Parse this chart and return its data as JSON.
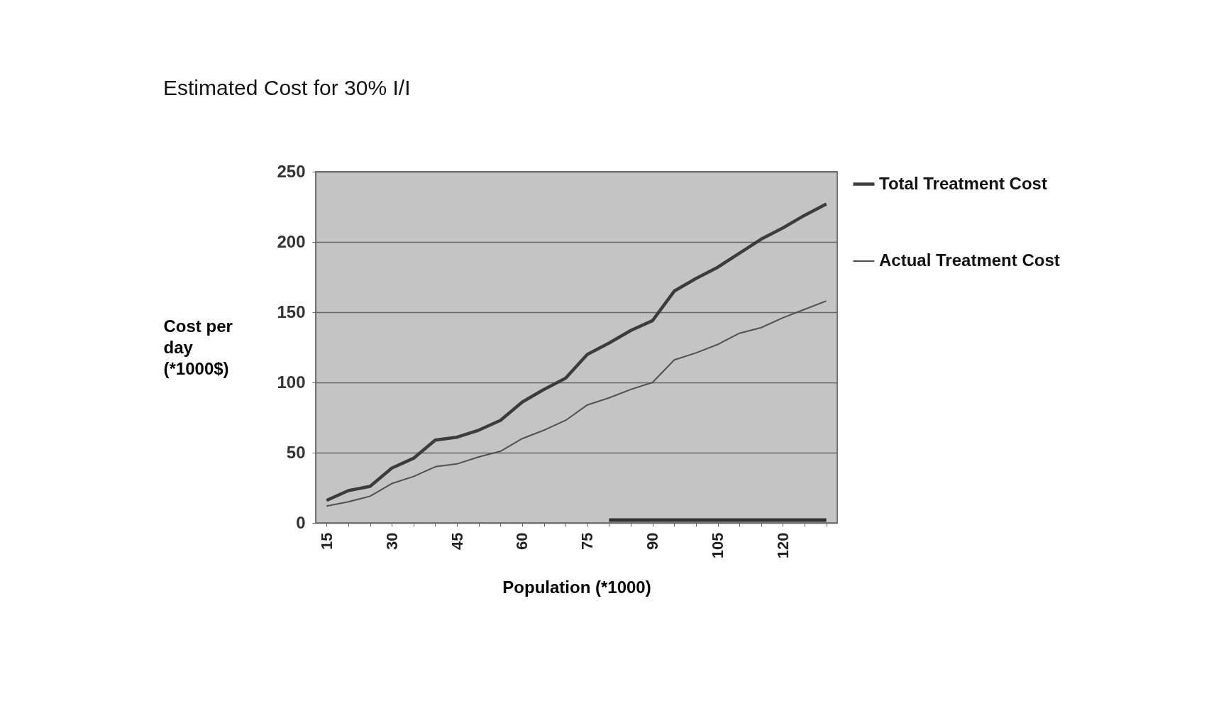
{
  "chart_data": {
    "type": "line",
    "title": "Estimated Cost for 30% I/I",
    "xlabel": "Population (*1000)",
    "ylabel": "Cost per day (*1000$)",
    "categories": [
      "15",
      null,
      null,
      "30",
      null,
      null,
      "45",
      null,
      null,
      "60",
      null,
      null,
      "75",
      null,
      null,
      "90",
      null,
      null,
      "105",
      null,
      null,
      "120",
      null,
      null
    ],
    "series": [
      {
        "name": "Total Treatment Cost",
        "color": "#3c3c3c",
        "values": [
          16,
          23,
          26,
          39,
          46,
          59,
          61,
          66,
          73,
          86,
          95,
          103,
          120,
          128,
          137,
          144,
          165,
          174,
          182,
          192,
          202,
          210,
          219,
          227
        ]
      },
      {
        "name": "Actual Treatment Cost",
        "color": "#505050",
        "values": [
          12,
          15,
          19,
          28,
          33,
          40,
          42,
          47,
          51,
          60,
          66,
          73,
          84,
          89,
          95,
          100,
          116,
          121,
          127,
          135,
          139,
          146,
          152,
          158
        ]
      },
      {
        "color": "#303030",
        "values": [
          null,
          null,
          null,
          null,
          null,
          null,
          null,
          null,
          null,
          null,
          null,
          null,
          null,
          2,
          2,
          2,
          2,
          2,
          2,
          2,
          2,
          2,
          2,
          2
        ]
      }
    ],
    "ylim": [
      0,
      250
    ],
    "yticks": [
      0,
      50,
      100,
      150,
      200,
      250
    ],
    "grid": "y",
    "legend": "right"
  }
}
